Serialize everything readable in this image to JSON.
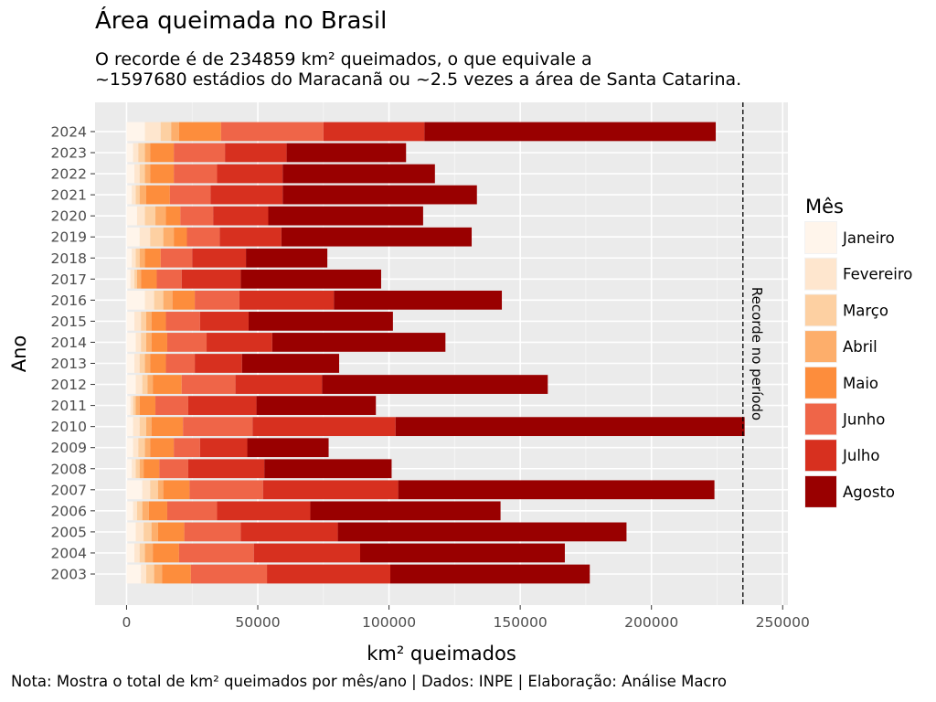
{
  "chart_data": {
    "type": "bar",
    "orientation": "horizontal",
    "stacked": true,
    "title": "Área queimada no Brasil",
    "subtitle_lines": [
      "O recorde é de 234859 km² queimados, o que equivale a",
      "~1597680 estádios do Maracanã ou ~2.5 vezes a área de Santa Catarina."
    ],
    "xlabel": "km² queimados",
    "ylabel": "Ano",
    "caption": "Nota: Mostra o total de km² queimados por mês/ano | Dados: INPE | Elaboração: Análise Macro",
    "xlim": [
      -12000,
      252000
    ],
    "x_ticks": [
      0,
      50000,
      100000,
      150000,
      200000,
      250000
    ],
    "grid": true,
    "legend_title": "Mês",
    "legend_position": "right",
    "reference_line": {
      "value": 234859,
      "label": "Recorde no período",
      "style": "dashed"
    },
    "categories": [
      "2003",
      "2004",
      "2005",
      "2006",
      "2007",
      "2008",
      "2009",
      "2010",
      "2011",
      "2012",
      "2013",
      "2014",
      "2015",
      "2016",
      "2017",
      "2018",
      "2019",
      "2020",
      "2021",
      "2022",
      "2023",
      "2024"
    ],
    "series": [
      {
        "name": "Janeiro",
        "color": "#FFF5EB",
        "values": [
          5500,
          3000,
          3500,
          2500,
          6000,
          2000,
          2500,
          2500,
          1500,
          3500,
          3000,
          3500,
          3000,
          7000,
          1500,
          2000,
          5000,
          4000,
          2000,
          3000,
          2500,
          7000
        ]
      },
      {
        "name": "Fevereiro",
        "color": "#FEE6CE",
        "values": [
          2000,
          2000,
          3000,
          1500,
          3000,
          1500,
          2000,
          2500,
          1000,
          2500,
          2000,
          2000,
          2500,
          3500,
          1500,
          1500,
          4000,
          3000,
          1500,
          2000,
          2000,
          6000
        ]
      },
      {
        "name": "Março",
        "color": "#FDD0A2",
        "values": [
          3000,
          2000,
          3000,
          2000,
          3000,
          1500,
          2500,
          2500,
          1000,
          2000,
          2000,
          2000,
          2000,
          3500,
          1000,
          1500,
          5000,
          4000,
          1500,
          2000,
          2500,
          4000
        ]
      },
      {
        "name": "Abril",
        "color": "#FDAE6B",
        "values": [
          3000,
          3000,
          2500,
          2500,
          2000,
          1500,
          2000,
          2000,
          1500,
          2000,
          2000,
          2000,
          2000,
          3500,
          1500,
          2000,
          4000,
          4000,
          2500,
          2000,
          2000,
          3000
        ]
      },
      {
        "name": "Maio",
        "color": "#FD8D3C",
        "values": [
          11000,
          10000,
          10000,
          7000,
          10000,
          6000,
          9000,
          12000,
          6000,
          11000,
          6000,
          6000,
          5500,
          8500,
          6000,
          6000,
          5000,
          5500,
          9000,
          9000,
          9000,
          16000
        ]
      },
      {
        "name": "Junho",
        "color": "#EF6548",
        "values": [
          29000,
          28500,
          21500,
          19000,
          28000,
          11000,
          10000,
          26500,
          12500,
          20500,
          11000,
          15000,
          13000,
          17000,
          9500,
          12000,
          12500,
          12500,
          15500,
          16500,
          19500,
          39000
        ]
      },
      {
        "name": "Julho",
        "color": "#D7301F",
        "values": [
          47000,
          40500,
          37000,
          35500,
          51500,
          29000,
          18000,
          54500,
          26000,
          33000,
          18000,
          25000,
          18500,
          36000,
          22500,
          20500,
          23500,
          21000,
          27500,
          25000,
          23500,
          38500
        ]
      },
      {
        "name": "Agosto",
        "color": "#990000",
        "values": [
          76000,
          78000,
          110000,
          72500,
          120500,
          48500,
          31000,
          133000,
          45500,
          86000,
          37000,
          66000,
          55000,
          64000,
          53500,
          31000,
          72500,
          59000,
          74000,
          58000,
          45500,
          111000
        ]
      }
    ]
  }
}
